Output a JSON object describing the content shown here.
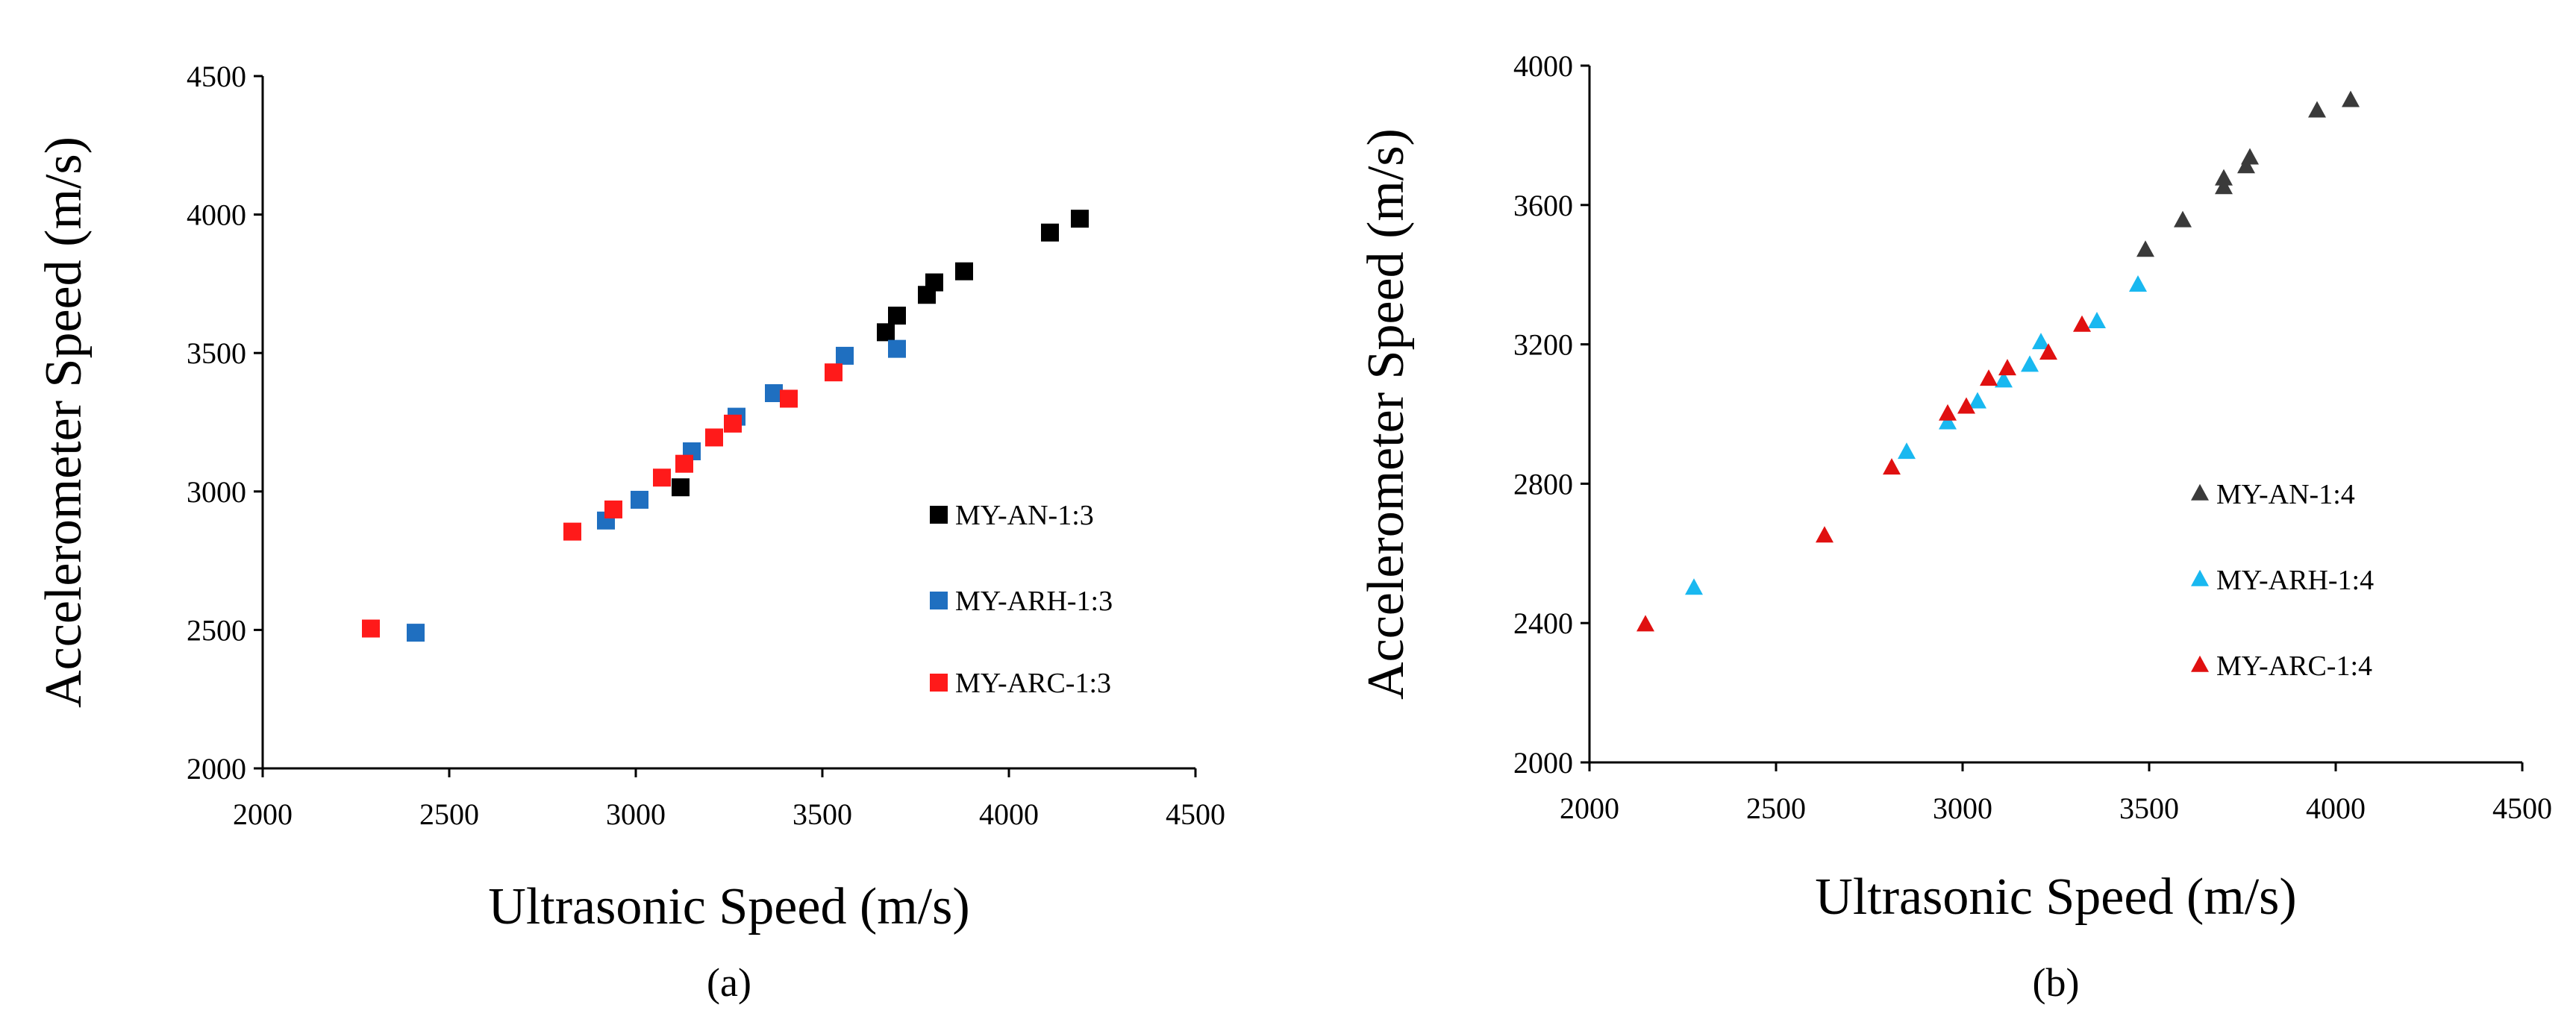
{
  "colors": {
    "an_square": "#000000",
    "arh_square": "#1f6fc0",
    "arc_square": "#ff1a1a",
    "an_triangle": "#3a3a3a",
    "arh_triangle": "#19b8f0",
    "arc_triangle": "#e01010"
  },
  "chart_data": [
    {
      "type": "scatter",
      "panel_label": "(a)",
      "xlabel": "Ultrasonic Speed (m/s)",
      "ylabel": "Accelerometer Speed (m/s)",
      "xlim": [
        2000,
        4500
      ],
      "ylim": [
        2000,
        4500
      ],
      "x_ticks": [
        "2000",
        "2500",
        "3000",
        "3500",
        "4000",
        "4500"
      ],
      "y_ticks": [
        "2000",
        "2500",
        "3000",
        "3500",
        "4000",
        "4500"
      ],
      "marker": "square",
      "legend_position": "right",
      "series": [
        {
          "name": "MY-AN-1:3",
          "color_key": "an_square",
          "points": [
            [
              3120,
              3015
            ],
            [
              3670,
              3575
            ],
            [
              3700,
              3635
            ],
            [
              3780,
              3710
            ],
            [
              3800,
              3755
            ],
            [
              3880,
              3795
            ],
            [
              4110,
              3935
            ],
            [
              4190,
              3985
            ]
          ]
        },
        {
          "name": "MY-ARH-1:3",
          "color_key": "arh_square",
          "points": [
            [
              2410,
              2490
            ],
            [
              2920,
              2895
            ],
            [
              3010,
              2970
            ],
            [
              3150,
              3145
            ],
            [
              3270,
              3270
            ],
            [
              3370,
              3355
            ],
            [
              3560,
              3490
            ],
            [
              3700,
              3515
            ]
          ]
        },
        {
          "name": "MY-ARC-1:3",
          "color_key": "arc_square",
          "points": [
            [
              2290,
              2505
            ],
            [
              2830,
              2855
            ],
            [
              2940,
              2935
            ],
            [
              3070,
              3050
            ],
            [
              3130,
              3100
            ],
            [
              3210,
              3195
            ],
            [
              3260,
              3245
            ],
            [
              3410,
              3335
            ],
            [
              3530,
              3430
            ]
          ]
        }
      ]
    },
    {
      "type": "scatter",
      "panel_label": "(b)",
      "xlabel": "Ultrasonic Speed (m/s)",
      "ylabel": "Accelerometer Speed (m/s)",
      "xlim": [
        2000,
        4500
      ],
      "ylim": [
        2000,
        4000
      ],
      "x_ticks": [
        "2000",
        "2500",
        "3000",
        "3500",
        "4000",
        "4500"
      ],
      "y_ticks": [
        "2000",
        "2400",
        "2800",
        "3200",
        "3600",
        "4000"
      ],
      "marker": "triangle",
      "legend_position": "right",
      "series": [
        {
          "name": "MY-AN-1:4",
          "color_key": "an_triangle",
          "points": [
            [
              3490,
              3470
            ],
            [
              3590,
              3555
            ],
            [
              3700,
              3650
            ],
            [
              3700,
              3675
            ],
            [
              3760,
              3710
            ],
            [
              3770,
              3735
            ],
            [
              3950,
              3870
            ],
            [
              4040,
              3900
            ]
          ]
        },
        {
          "name": "MY-ARH-1:4",
          "color_key": "arh_triangle",
          "points": [
            [
              2280,
              2500
            ],
            [
              2850,
              2890
            ],
            [
              2960,
              2975
            ],
            [
              3040,
              3035
            ],
            [
              3110,
              3095
            ],
            [
              3180,
              3140
            ],
            [
              3210,
              3205
            ],
            [
              3360,
              3265
            ],
            [
              3470,
              3370
            ]
          ]
        },
        {
          "name": "MY-ARC-1:4",
          "color_key": "arc_triangle",
          "points": [
            [
              2150,
              2395
            ],
            [
              2630,
              2650
            ],
            [
              2810,
              2845
            ],
            [
              2960,
              3000
            ],
            [
              3010,
              3020
            ],
            [
              3070,
              3100
            ],
            [
              3120,
              3130
            ],
            [
              3230,
              3175
            ],
            [
              3320,
              3255
            ]
          ]
        }
      ]
    }
  ]
}
